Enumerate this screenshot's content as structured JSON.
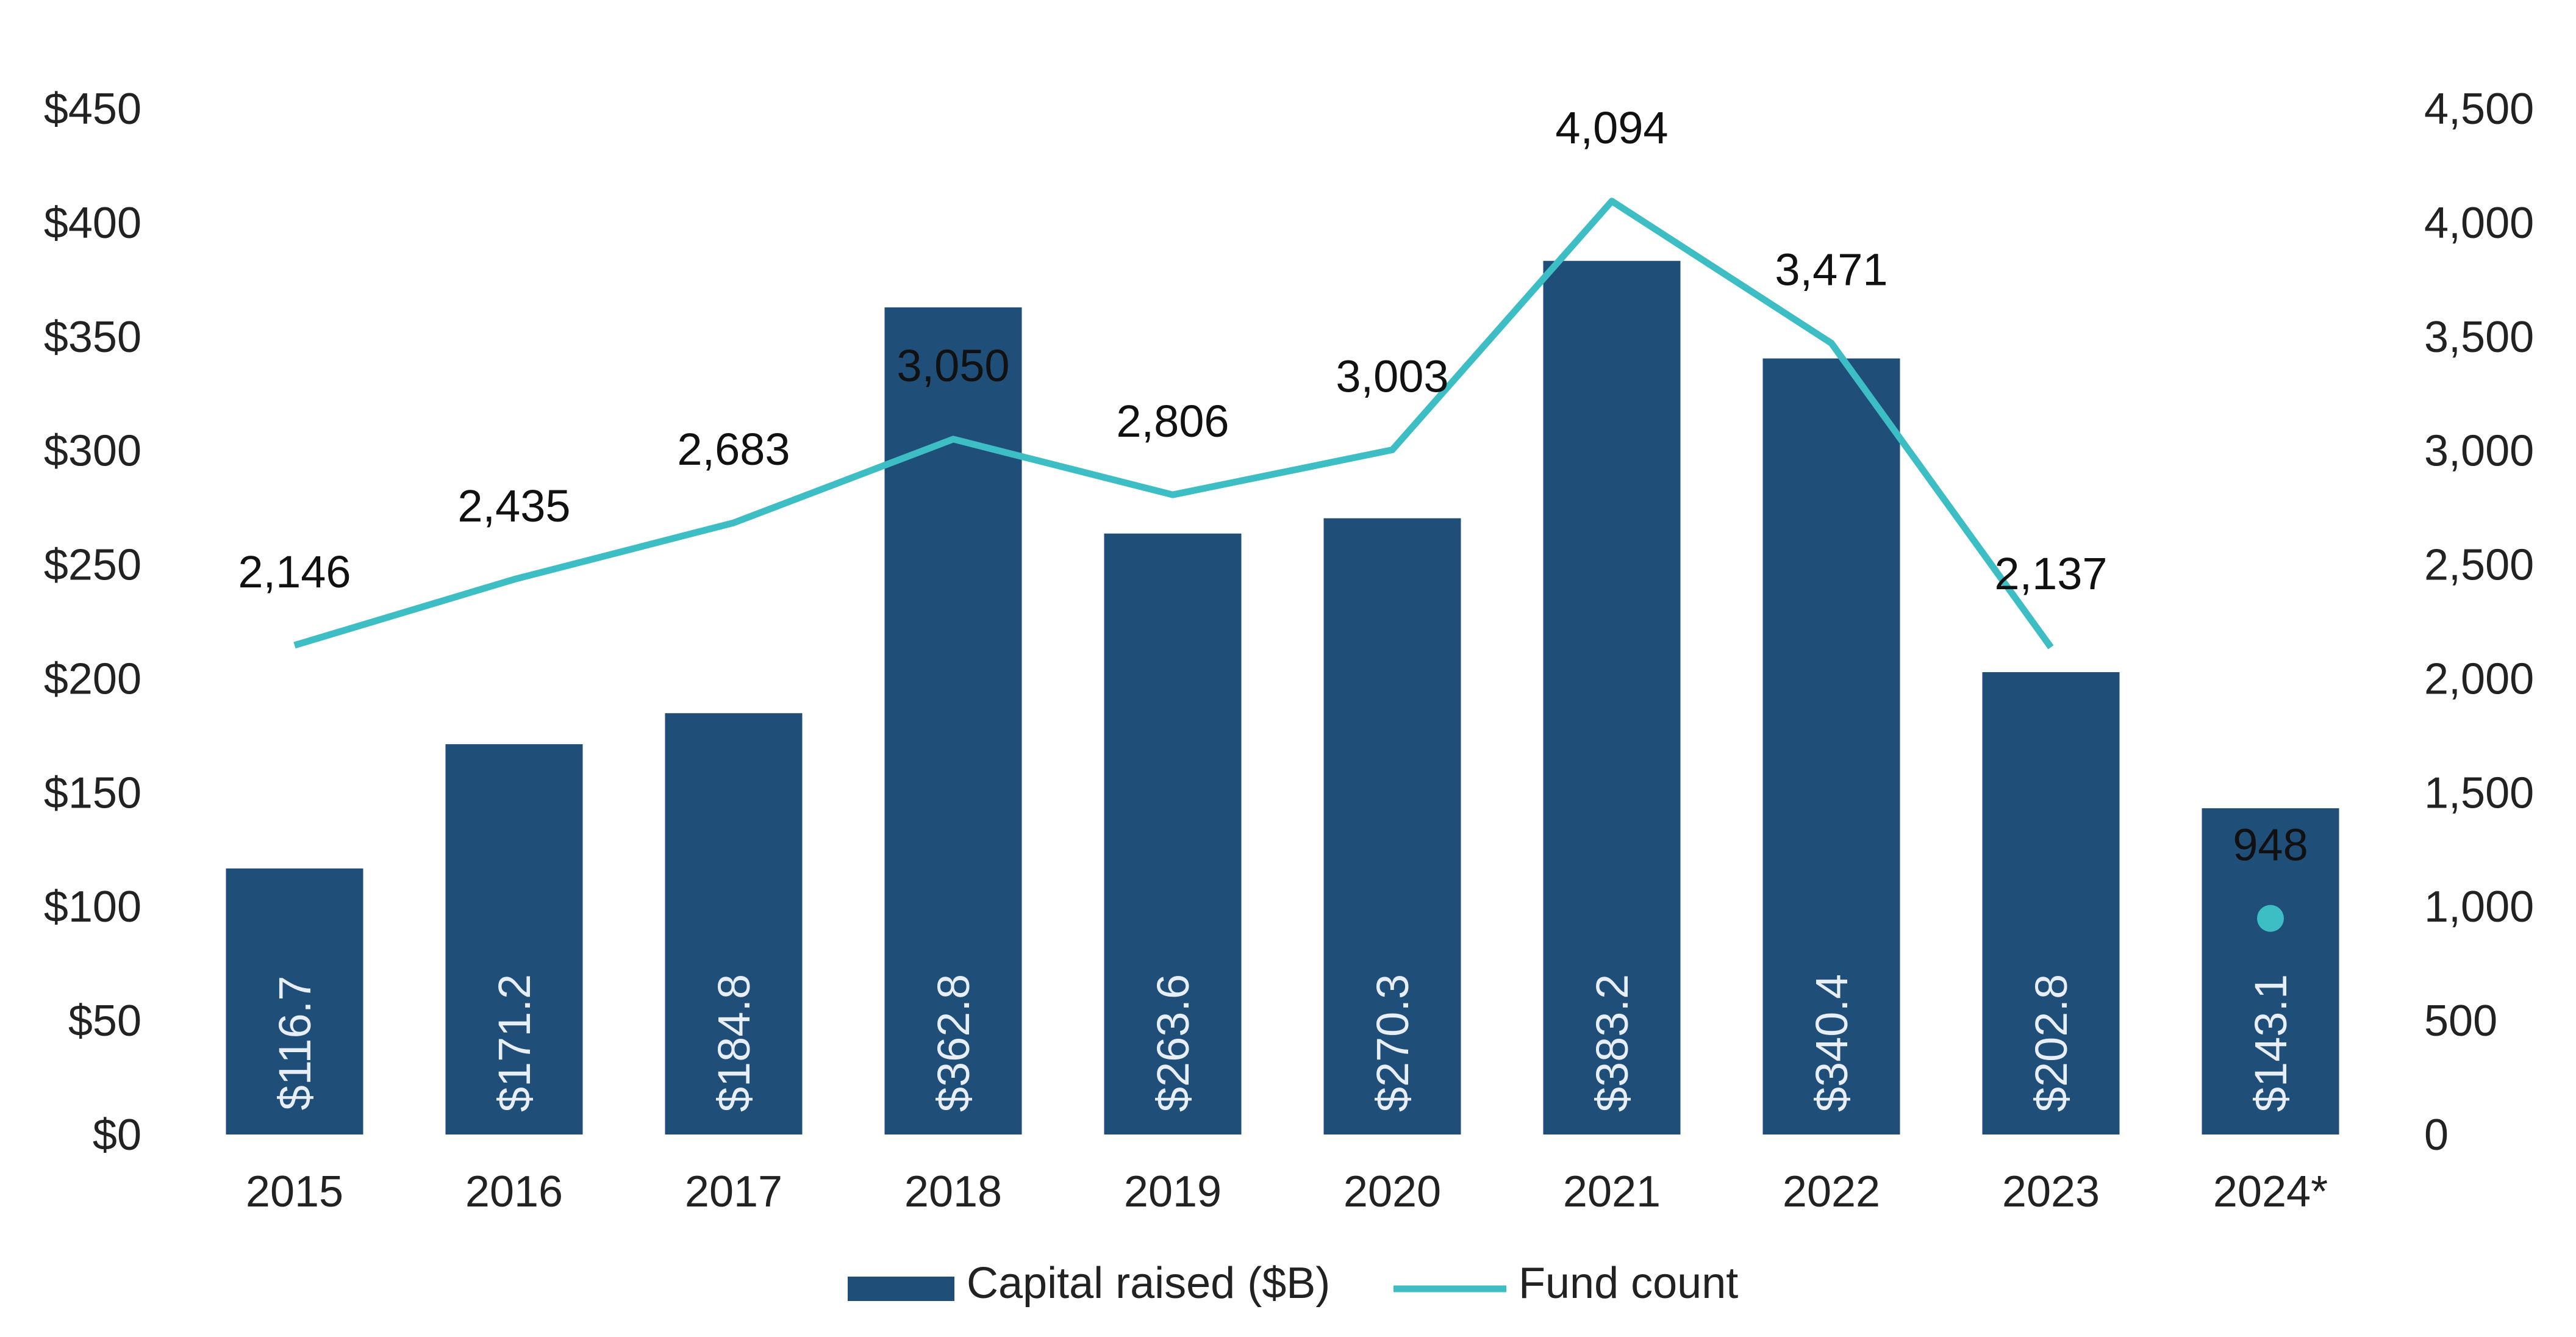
{
  "chart_data": {
    "type": "bar",
    "categories": [
      "2015",
      "2016",
      "2017",
      "2018",
      "2019",
      "2020",
      "2021",
      "2022",
      "2023",
      "2024*"
    ],
    "series": [
      {
        "name": "Capital raised ($B)",
        "type": "bar",
        "axis": "left",
        "values": [
          116.7,
          171.2,
          184.8,
          362.8,
          263.6,
          270.3,
          383.2,
          340.4,
          202.8,
          143.1
        ],
        "labels": [
          "$116.7",
          "$171.2",
          "$184.8",
          "$362.8",
          "$263.6",
          "$270.3",
          "$383.2",
          "$340.4",
          "$202.8",
          "$143.1"
        ]
      },
      {
        "name": "Fund count",
        "type": "line",
        "axis": "right",
        "values": [
          2146,
          2435,
          2683,
          3050,
          2806,
          3003,
          4094,
          3471,
          2137,
          948
        ],
        "labels": [
          "2,146",
          "2,435",
          "2,683",
          "3,050",
          "2,806",
          "3,003",
          "4,094",
          "3,471",
          "2,137",
          "948"
        ],
        "last_point_marker_only": true
      }
    ],
    "left_axis": {
      "ticks": [
        "$0",
        "$50",
        "$100",
        "$150",
        "$200",
        "$250",
        "$300",
        "$350",
        "$400",
        "$450"
      ],
      "ylim": [
        0,
        450
      ]
    },
    "right_axis": {
      "ticks": [
        "0",
        "500",
        "1,000",
        "1,500",
        "2,000",
        "2,500",
        "3,000",
        "3,500",
        "4,000",
        "4,500"
      ],
      "ylim": [
        0,
        4500
      ]
    },
    "grid": false,
    "legend_position": "bottom-center",
    "colors": {
      "bar": "#1f4e79",
      "line": "#3dbdc4",
      "bar_label": "#e8eef5"
    }
  }
}
